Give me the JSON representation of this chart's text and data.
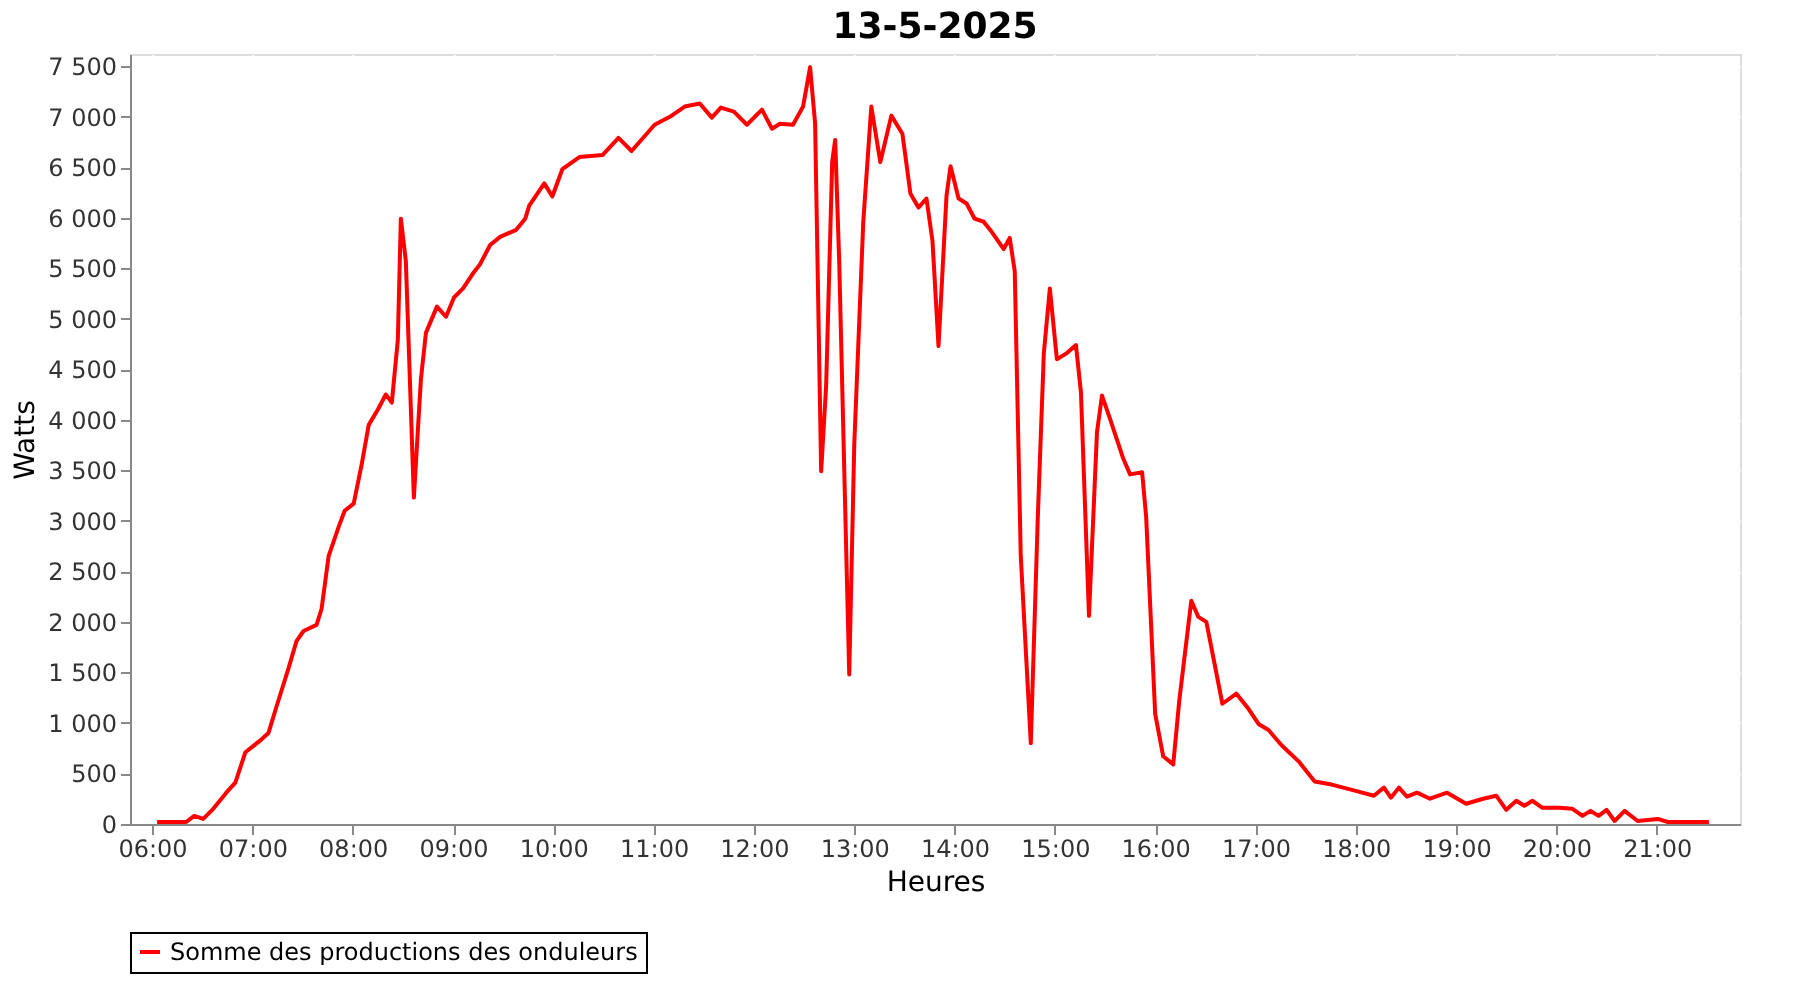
{
  "chart_data": {
    "type": "line",
    "title": "13-5-2025",
    "xlabel": "Heures",
    "ylabel": "Watts",
    "xlim": [
      5.78,
      21.83
    ],
    "xticks": [
      {
        "value": 6,
        "label": "06:00"
      },
      {
        "value": 7,
        "label": "07:00"
      },
      {
        "value": 8,
        "label": "08:00"
      },
      {
        "value": 9,
        "label": "09:00"
      },
      {
        "value": 10,
        "label": "10:00"
      },
      {
        "value": 11,
        "label": "11:00"
      },
      {
        "value": 12,
        "label": "12:00"
      },
      {
        "value": 13,
        "label": "13:00"
      },
      {
        "value": 14,
        "label": "14:00"
      },
      {
        "value": 15,
        "label": "15:00"
      },
      {
        "value": 16,
        "label": "16:00"
      },
      {
        "value": 17,
        "label": "17:00"
      },
      {
        "value": 18,
        "label": "18:00"
      },
      {
        "value": 19,
        "label": "19:00"
      },
      {
        "value": 20,
        "label": "20:00"
      },
      {
        "value": 21,
        "label": "21:00"
      }
    ],
    "ylim": [
      0,
      7620
    ],
    "yticks": [
      0,
      500,
      {
        "value": 1000,
        "label": "1 000"
      },
      {
        "value": 1500,
        "label": "1 500"
      },
      {
        "value": 2000,
        "label": "2 000"
      },
      {
        "value": 2500,
        "label": "2 500"
      },
      {
        "value": 3000,
        "label": "3 000"
      },
      {
        "value": 3500,
        "label": "3 500"
      },
      {
        "value": 4000,
        "label": "4 000"
      },
      {
        "value": 4500,
        "label": "4 500"
      },
      {
        "value": 5000,
        "label": "5 000"
      },
      {
        "value": 5500,
        "label": "5 500"
      },
      {
        "value": 6000,
        "label": "6 000"
      },
      {
        "value": 6500,
        "label": "6 500"
      },
      {
        "value": 7000,
        "label": "7 000"
      },
      {
        "value": 7500,
        "label": "7 500"
      }
    ],
    "grid": true,
    "legend": "bottom",
    "line_style": "solid",
    "series": [
      {
        "name": "Somme des productions des onduleurs",
        "color": "#ff0000",
        "x": [
          6.05,
          6.34,
          6.42,
          6.51,
          6.61,
          6.74,
          6.83,
          6.93,
          7.07,
          7.16,
          7.24,
          7.36,
          7.44,
          7.51,
          7.64,
          7.69,
          7.76,
          7.86,
          7.92,
          8.01,
          8.09,
          8.16,
          8.25,
          8.33,
          8.39,
          8.45,
          8.48,
          8.53,
          8.61,
          8.68,
          8.73,
          8.84,
          8.93,
          9.01,
          9.1,
          9.2,
          9.27,
          9.37,
          9.47,
          9.63,
          9.72,
          9.76,
          9.91,
          9.99,
          10.09,
          10.26,
          10.49,
          10.65,
          10.78,
          11.01,
          11.18,
          11.31,
          11.46,
          11.58,
          11.67,
          11.8,
          11.93,
          12.08,
          12.18,
          12.26,
          12.39,
          12.49,
          12.56,
          12.61,
          12.67,
          12.72,
          12.78,
          12.81,
          12.85,
          12.95,
          13.0,
          13.09,
          13.17,
          13.26,
          13.37,
          13.48,
          13.56,
          13.64,
          13.72,
          13.78,
          13.84,
          13.92,
          13.96,
          14.04,
          14.12,
          14.2,
          14.29,
          14.37,
          14.49,
          14.55,
          14.6,
          14.66,
          14.76,
          14.83,
          14.89,
          14.95,
          15.02,
          15.12,
          15.21,
          15.26,
          15.34,
          15.42,
          15.47,
          15.55,
          15.68,
          15.75,
          15.87,
          15.91,
          16.0,
          16.08,
          16.18,
          16.24,
          16.36,
          16.43,
          16.51,
          16.67,
          16.81,
          16.93,
          17.03,
          17.13,
          17.26,
          17.43,
          17.59,
          17.76,
          17.99,
          18.18,
          18.28,
          18.35,
          18.43,
          18.51,
          18.61,
          18.74,
          18.91,
          19.1,
          19.27,
          19.4,
          19.5,
          19.6,
          19.68,
          19.76,
          19.86,
          20.03,
          20.16,
          20.26,
          20.34,
          20.42,
          20.5,
          20.58,
          20.68,
          20.81,
          21.01,
          21.11,
          21.52
        ],
        "values": [
          20,
          20,
          80,
          50,
          150,
          310,
          410,
          710,
          820,
          900,
          1160,
          1540,
          1810,
          1910,
          1970,
          2130,
          2650,
          2940,
          3100,
          3170,
          3560,
          3950,
          4100,
          4250,
          4170,
          4790,
          5990,
          5570,
          3230,
          4400,
          4860,
          5120,
          5020,
          5210,
          5300,
          5450,
          5540,
          5730,
          5810,
          5880,
          5990,
          6120,
          6340,
          6210,
          6480,
          6600,
          6620,
          6790,
          6660,
          6920,
          7010,
          7100,
          7130,
          6990,
          7090,
          7050,
          6920,
          7070,
          6880,
          6930,
          6920,
          7100,
          7490,
          6930,
          3490,
          4340,
          6550,
          6770,
          5570,
          1480,
          3750,
          5960,
          7100,
          6550,
          7010,
          6830,
          6240,
          6100,
          6190,
          5770,
          4730,
          6220,
          6510,
          6190,
          6140,
          5990,
          5960,
          5860,
          5690,
          5800,
          5470,
          2650,
          800,
          3040,
          4660,
          5300,
          4600,
          4660,
          4740,
          4270,
          2060,
          3880,
          4240,
          4010,
          3620,
          3460,
          3480,
          3040,
          1090,
          670,
          590,
          1220,
          2210,
          2050,
          2000,
          1190,
          1290,
          1140,
          990,
          930,
          780,
          620,
          420,
          390,
          330,
          280,
          360,
          260,
          360,
          270,
          310,
          250,
          310,
          200,
          250,
          280,
          140,
          230,
          180,
          230,
          160,
          160,
          150,
          80,
          130,
          80,
          140,
          30,
          130,
          30,
          50,
          20,
          20
        ]
      }
    ]
  }
}
